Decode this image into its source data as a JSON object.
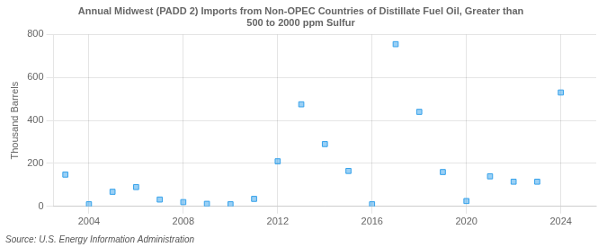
{
  "chart_data": {
    "type": "scatter",
    "title": "Annual Midwest (PADD 2) Imports from Non-OPEC Countries of Distillate Fuel Oil, Greater than\n500 to 2000 ppm Sulfur",
    "ylabel": "Thousand Barrels",
    "source": "Source: U.S. Energy Information Administration",
    "x": [
      2003,
      2004,
      2005,
      2006,
      2007,
      2008,
      2009,
      2010,
      2011,
      2012,
      2013,
      2014,
      2015,
      2016,
      2017,
      2018,
      2019,
      2020,
      2021,
      2022,
      2023,
      2024
    ],
    "values": [
      148,
      10,
      68,
      90,
      32,
      20,
      12,
      10,
      35,
      210,
      475,
      290,
      165,
      10,
      755,
      440,
      160,
      25,
      140,
      115,
      115,
      530
    ],
    "xlim": [
      2002.5,
      2025.5
    ],
    "xticks": [
      2004,
      2008,
      2012,
      2016,
      2020,
      2024
    ],
    "ylim": [
      0,
      800
    ],
    "yticks": [
      0,
      200,
      400,
      600,
      800
    ],
    "marker": "square",
    "grid": true
  }
}
